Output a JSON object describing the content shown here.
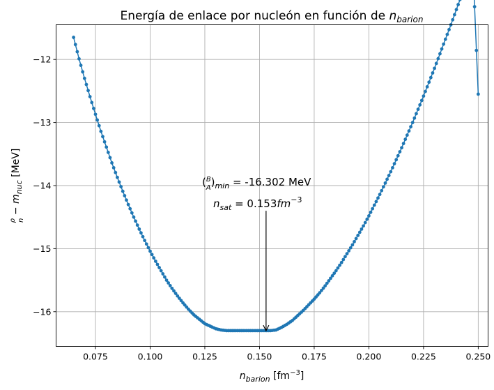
{
  "chart_data": {
    "type": "line",
    "title_text": "Energía de enlace por nucleón en función de ",
    "title_sym": "n",
    "title_sub": "barion",
    "xlabel_sym": "n",
    "xlabel_sub": "barion",
    "xlabel_unit": " [fm",
    "xlabel_exp": "−3",
    "xlabel_close": "]",
    "ylabel_frac_num": "ρ",
    "ylabel_frac_den": "n",
    "ylabel_mid": " − m",
    "ylabel_sub": "nuc",
    "ylabel_unit": " [MeV]",
    "xlim": [
      0.057,
      0.2545
    ],
    "ylim": [
      -16.55,
      -11.45
    ],
    "xticks": [
      0.075,
      0.1,
      0.125,
      0.15,
      0.175,
      0.2,
      0.225,
      0.25
    ],
    "xtick_labels": [
      "0.075",
      "0.100",
      "0.125",
      "0.150",
      "0.175",
      "0.200",
      "0.225",
      "0.250"
    ],
    "yticks": [
      -12,
      -13,
      -14,
      -15,
      -16
    ],
    "ytick_labels": [
      "−12",
      "−13",
      "−14",
      "−15",
      "−16"
    ],
    "grid": true,
    "color": "#1f77b4",
    "series": [
      {
        "x": [
          0.065,
          0.0675,
          0.07,
          0.0725,
          0.075,
          0.0775,
          0.08,
          0.0825,
          0.085,
          0.0875,
          0.09,
          0.0925,
          0.095,
          0.0975,
          0.1,
          0.1025,
          0.105,
          0.1075,
          0.11,
          0.1125,
          0.115,
          0.1175,
          0.12,
          0.1225,
          0.125,
          0.1275,
          0.13,
          0.1325,
          0.135,
          0.1375,
          0.14,
          0.1425,
          0.145,
          0.1475,
          0.15,
          0.1525,
          0.155,
          0.1575,
          0.16,
          0.1625,
          0.165,
          0.1675,
          0.17,
          0.1725,
          0.175,
          0.1775,
          0.18,
          0.1825,
          0.185,
          0.1875,
          0.19,
          0.1925,
          0.195,
          0.1975,
          0.2,
          0.2025,
          0.205,
          0.2075,
          0.21,
          0.2125,
          0.215,
          0.2175,
          0.22,
          0.2225,
          0.225,
          0.2275,
          0.23,
          0.2325,
          0.235,
          0.2375,
          0.24,
          0.2425,
          0.245,
          0.2475,
          0.25
        ],
        "y": [
          -11.65,
          -11.99,
          -12.3,
          -12.59,
          -12.87,
          -13.14,
          -13.39,
          -13.64,
          -13.87,
          -14.09,
          -14.3,
          -14.5,
          -14.69,
          -14.87,
          -15.04,
          -15.2,
          -15.35,
          -15.5,
          -15.63,
          -15.75,
          -15.86,
          -15.96,
          -16.05,
          -16.12,
          -16.19,
          -16.23,
          -16.27,
          -16.29,
          -16.3,
          -16.3,
          -16.3,
          -16.3,
          -16.3,
          -16.3,
          -16.3,
          -16.3,
          -16.3,
          -16.29,
          -16.25,
          -16.2,
          -16.14,
          -16.06,
          -15.98,
          -15.89,
          -15.8,
          -15.7,
          -15.59,
          -15.47,
          -15.35,
          -15.22,
          -15.08,
          -14.94,
          -14.79,
          -14.64,
          -14.48,
          -14.31,
          -14.14,
          -13.96,
          -13.78,
          -13.59,
          -13.4,
          -13.2,
          -13.0,
          -12.79,
          -12.58,
          -12.36,
          -12.14,
          -11.91,
          -11.68,
          -11.45,
          -11.21,
          -10.97,
          -10.72,
          -10.47,
          -12.55
        ]
      }
    ],
    "annotation": {
      "line1_prefix": "(",
      "line1_num": "B",
      "line1_den": "A",
      "line1_sub": "min",
      "line1_text": " = -16.302 MeV",
      "line2_sym": "n",
      "line2_sub": "sat",
      "line2_text": " = 0.153",
      "line2_unit": "fm",
      "line2_exp": "−3",
      "arrow_x": 0.153,
      "arrow_y_from": -14.4,
      "arrow_y_to": -16.302
    }
  }
}
